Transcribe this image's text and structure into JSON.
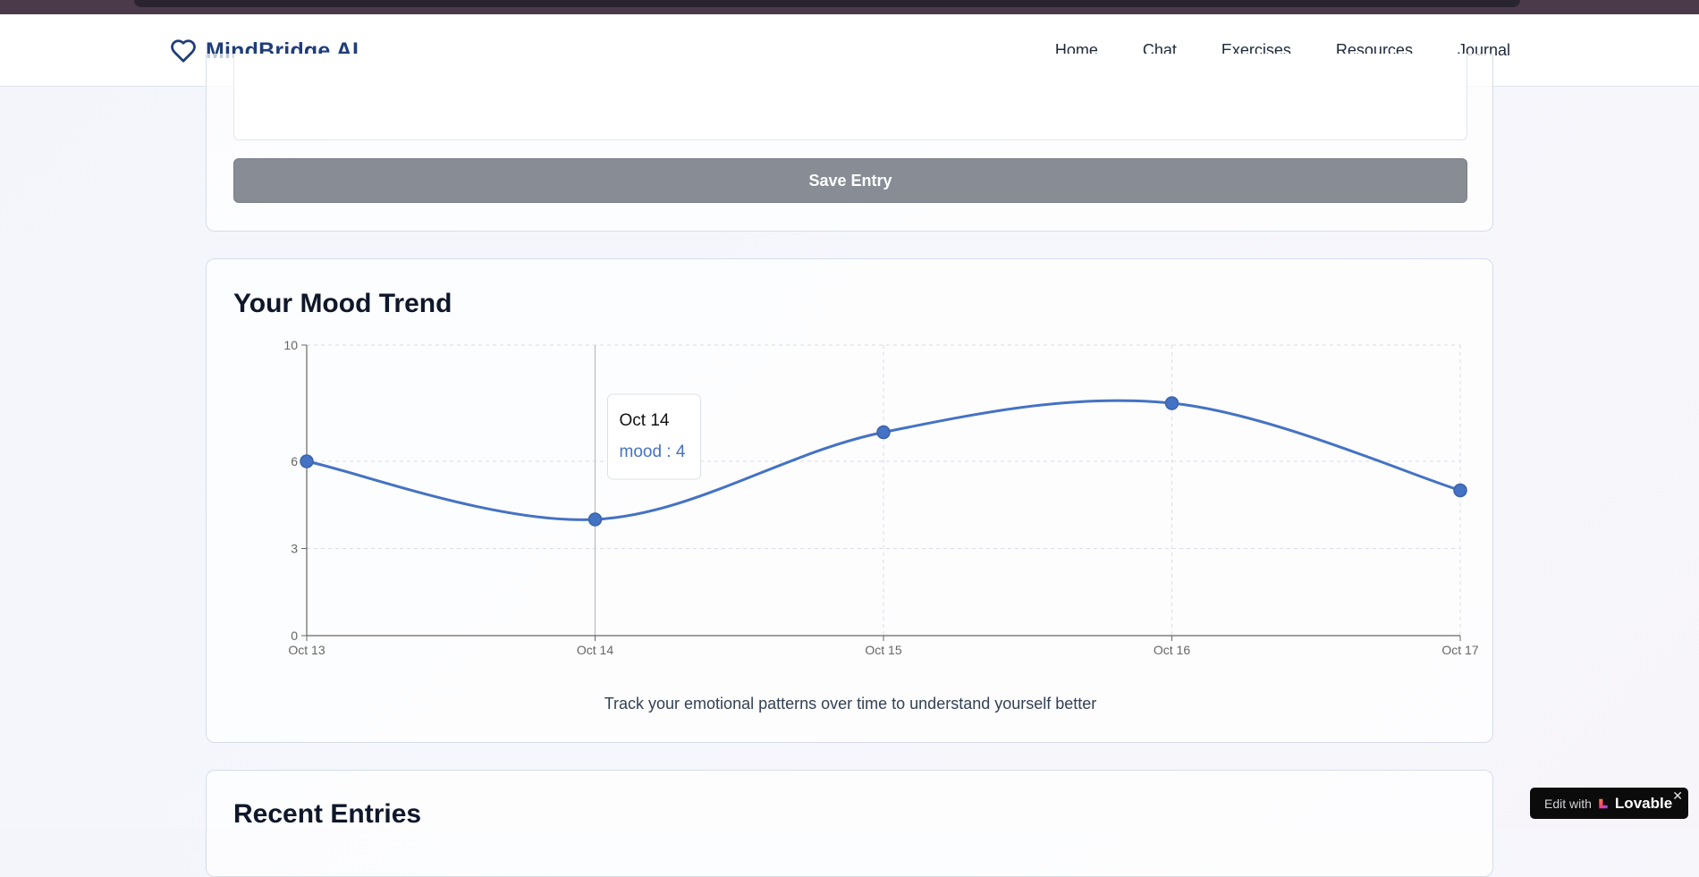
{
  "app": {
    "brand_name": "MindBridge AI",
    "brand_icon": "heart-icon"
  },
  "nav": {
    "items": [
      "Home",
      "Chat",
      "Exercises",
      "Resources",
      "Journal"
    ]
  },
  "journal_form": {
    "save_label": "Save Entry"
  },
  "mood_trend": {
    "title": "Your Mood Trend",
    "caption": "Track your emotional patterns over time to understand yourself better",
    "tooltip": {
      "label": "Oct 14",
      "value_text": "mood : 4"
    }
  },
  "chart_data": {
    "type": "line",
    "categories": [
      "Oct 13",
      "Oct 14",
      "Oct 15",
      "Oct 16",
      "Oct 17"
    ],
    "series": [
      {
        "name": "mood",
        "values": [
          6,
          4,
          7,
          8,
          5
        ],
        "color": "#4472c4"
      }
    ],
    "y_ticks": [
      "0",
      "3",
      "6",
      "10"
    ],
    "ylim": [
      0,
      10
    ],
    "grid": true,
    "active_point": "Oct 14"
  },
  "recent": {
    "title": "Recent Entries"
  },
  "badge": {
    "edit_text": "Edit with",
    "brand": "Lovable",
    "close": "✕"
  },
  "colors": {
    "brand": "#1f3d7a",
    "line": "#4472c4",
    "button": "#888c95"
  }
}
